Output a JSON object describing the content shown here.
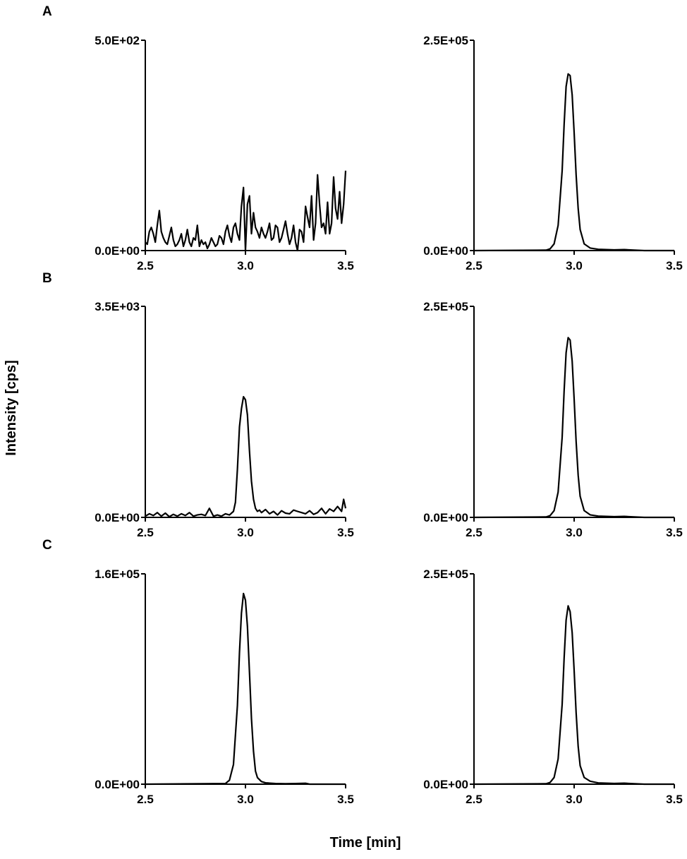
{
  "figure": {
    "ylabel": "Intensity [cps]",
    "xlabel": "Time [min]"
  },
  "chart_data": [
    {
      "type": "line",
      "panel": "A",
      "position": "left",
      "xlim": [
        2.5,
        3.5
      ],
      "ylim": [
        0,
        500
      ],
      "xticks": [
        "2.5",
        "3.0",
        "3.5"
      ],
      "yticks": [
        "0.0E+00",
        "5.0E+02"
      ],
      "series": [
        {
          "x": [
            2.5,
            2.51,
            2.52,
            2.53,
            2.54,
            2.55,
            2.56,
            2.57,
            2.58,
            2.59,
            2.6,
            2.61,
            2.62,
            2.63,
            2.64,
            2.65,
            2.66,
            2.67,
            2.68,
            2.69,
            2.7,
            2.71,
            2.72,
            2.73,
            2.74,
            2.75,
            2.76,
            2.77,
            2.78,
            2.79,
            2.8,
            2.81,
            2.82,
            2.83,
            2.84,
            2.85,
            2.86,
            2.87,
            2.88,
            2.89,
            2.9,
            2.91,
            2.92,
            2.93,
            2.94,
            2.95,
            2.96,
            2.97,
            2.98,
            2.99,
            3.0,
            3.01,
            3.02,
            3.03,
            3.04,
            3.05,
            3.06,
            3.07,
            3.08,
            3.09,
            3.1,
            3.11,
            3.12,
            3.13,
            3.14,
            3.15,
            3.16,
            3.17,
            3.18,
            3.19,
            3.2,
            3.21,
            3.22,
            3.23,
            3.24,
            3.25,
            3.26,
            3.27,
            3.28,
            3.29,
            3.3,
            3.31,
            3.32,
            3.33,
            3.34,
            3.35,
            3.36,
            3.37,
            3.38,
            3.39,
            3.4,
            3.41,
            3.42,
            3.43,
            3.44,
            3.45,
            3.46,
            3.47,
            3.48,
            3.49,
            3.5
          ],
          "y": [
            20,
            15,
            45,
            55,
            40,
            20,
            60,
            95,
            45,
            30,
            20,
            15,
            35,
            55,
            25,
            10,
            15,
            25,
            40,
            10,
            25,
            50,
            20,
            10,
            30,
            25,
            60,
            10,
            25,
            15,
            20,
            5,
            15,
            30,
            20,
            10,
            15,
            35,
            30,
            15,
            45,
            60,
            35,
            20,
            55,
            65,
            40,
            25,
            105,
            150,
            0,
            110,
            130,
            40,
            90,
            55,
            45,
            30,
            55,
            40,
            30,
            45,
            65,
            25,
            30,
            60,
            55,
            20,
            30,
            50,
            70,
            40,
            15,
            30,
            60,
            20,
            0,
            50,
            45,
            20,
            105,
            80,
            55,
            130,
            25,
            65,
            180,
            110,
            55,
            65,
            40,
            115,
            40,
            65,
            175,
            100,
            75,
            140,
            65,
            110,
            190
          ]
        }
      ]
    },
    {
      "type": "line",
      "panel": "A",
      "position": "right",
      "xlim": [
        2.5,
        3.5
      ],
      "ylim": [
        0,
        250000
      ],
      "xticks": [
        "2.5",
        "3.0",
        "3.5"
      ],
      "yticks": [
        "0.0E+00",
        "2.5E+05"
      ],
      "series": [
        {
          "x": [
            2.5,
            2.86,
            2.88,
            2.9,
            2.92,
            2.94,
            2.95,
            2.96,
            2.97,
            2.98,
            2.99,
            3.0,
            3.01,
            3.02,
            3.03,
            3.05,
            3.08,
            3.12,
            3.2,
            3.25,
            3.3,
            3.35,
            3.5
          ],
          "y": [
            0,
            500,
            2000,
            8000,
            30000,
            95000,
            150000,
            195000,
            210000,
            208000,
            185000,
            140000,
            90000,
            50000,
            25000,
            8000,
            3000,
            1500,
            800,
            1200,
            600,
            0,
            0
          ]
        }
      ]
    },
    {
      "type": "line",
      "panel": "B",
      "position": "left",
      "xlim": [
        2.5,
        3.5
      ],
      "ylim": [
        0,
        3500
      ],
      "xticks": [
        "2.5",
        "3.0",
        "3.5"
      ],
      "yticks": [
        "0.0E+00",
        "3.5E+03"
      ],
      "series": [
        {
          "x": [
            2.5,
            2.52,
            2.54,
            2.56,
            2.58,
            2.6,
            2.62,
            2.64,
            2.66,
            2.68,
            2.7,
            2.72,
            2.74,
            2.76,
            2.78,
            2.8,
            2.82,
            2.84,
            2.86,
            2.88,
            2.9,
            2.92,
            2.94,
            2.95,
            2.96,
            2.97,
            2.98,
            2.99,
            3.0,
            3.01,
            3.02,
            3.03,
            3.04,
            3.05,
            3.06,
            3.07,
            3.08,
            3.1,
            3.12,
            3.14,
            3.16,
            3.18,
            3.2,
            3.22,
            3.24,
            3.26,
            3.28,
            3.3,
            3.32,
            3.34,
            3.36,
            3.38,
            3.4,
            3.42,
            3.44,
            3.46,
            3.48,
            3.49,
            3.5
          ],
          "y": [
            20,
            60,
            30,
            80,
            20,
            70,
            10,
            50,
            20,
            60,
            30,
            80,
            20,
            40,
            50,
            30,
            150,
            20,
            40,
            20,
            60,
            40,
            100,
            250,
            800,
            1500,
            1800,
            2000,
            1950,
            1700,
            1100,
            600,
            300,
            150,
            100,
            120,
            80,
            130,
            60,
            100,
            40,
            110,
            70,
            60,
            120,
            100,
            80,
            60,
            110,
            50,
            80,
            150,
            60,
            140,
            100,
            180,
            100,
            300,
            150
          ]
        }
      ]
    },
    {
      "type": "line",
      "panel": "B",
      "position": "right",
      "xlim": [
        2.5,
        3.5
      ],
      "ylim": [
        0,
        250000
      ],
      "xticks": [
        "2.5",
        "3.0",
        "3.5"
      ],
      "yticks": [
        "0.0E+00",
        "2.5E+05"
      ],
      "series": [
        {
          "x": [
            2.5,
            2.86,
            2.88,
            2.9,
            2.92,
            2.94,
            2.95,
            2.96,
            2.97,
            2.98,
            2.99,
            3.0,
            3.01,
            3.02,
            3.03,
            3.05,
            3.08,
            3.12,
            3.2,
            3.25,
            3.3,
            3.35,
            3.5
          ],
          "y": [
            0,
            500,
            2000,
            8000,
            30000,
            95000,
            150000,
            195000,
            213000,
            210000,
            185000,
            140000,
            90000,
            50000,
            25000,
            8000,
            3000,
            1500,
            800,
            1200,
            600,
            0,
            0
          ]
        }
      ]
    },
    {
      "type": "line",
      "panel": "C",
      "position": "left",
      "xlim": [
        2.5,
        3.5
      ],
      "ylim": [
        0,
        160000
      ],
      "xticks": [
        "2.5",
        "3.0",
        "3.5"
      ],
      "yticks": [
        "0.0E+00",
        "1.6E+05"
      ],
      "series": [
        {
          "x": [
            2.5,
            2.9,
            2.92,
            2.94,
            2.96,
            2.97,
            2.98,
            2.99,
            3.0,
            3.01,
            3.02,
            3.03,
            3.04,
            3.05,
            3.06,
            3.08,
            3.1,
            3.15,
            3.2,
            3.25,
            3.3,
            3.32,
            3.5
          ],
          "y": [
            0,
            500,
            3000,
            15000,
            60000,
            100000,
            130000,
            145000,
            140000,
            120000,
            85000,
            50000,
            25000,
            10000,
            5000,
            2000,
            1000,
            500,
            300,
            500,
            700,
            0,
            0
          ]
        }
      ]
    },
    {
      "type": "line",
      "panel": "C",
      "position": "right",
      "xlim": [
        2.5,
        3.5
      ],
      "ylim": [
        0,
        250000
      ],
      "xticks": [
        "2.5",
        "3.0",
        "3.5"
      ],
      "yticks": [
        "0.0E+00",
        "2.5E+05"
      ],
      "series": [
        {
          "x": [
            2.5,
            2.86,
            2.88,
            2.9,
            2.92,
            2.94,
            2.95,
            2.96,
            2.97,
            2.98,
            2.99,
            3.0,
            3.01,
            3.02,
            3.03,
            3.05,
            3.08,
            3.12,
            3.2,
            3.25,
            3.3,
            3.35,
            3.5
          ],
          "y": [
            0,
            500,
            2000,
            8000,
            30000,
            95000,
            150000,
            195000,
            212000,
            205000,
            180000,
            135000,
            85000,
            45000,
            22000,
            8000,
            3500,
            1500,
            800,
            1200,
            600,
            0,
            0
          ]
        }
      ]
    }
  ]
}
